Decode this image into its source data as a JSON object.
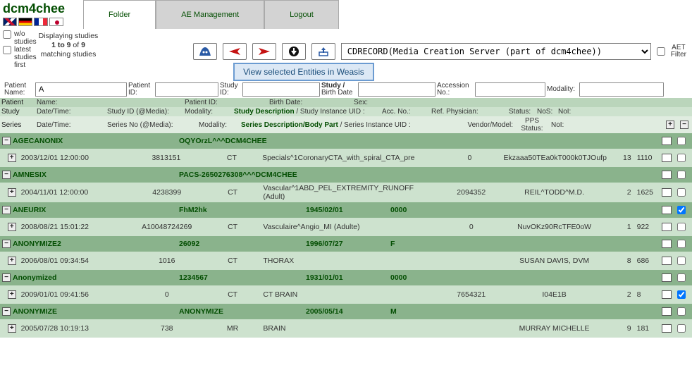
{
  "app": {
    "title": "dcm4chee"
  },
  "tabs": {
    "folder": "Folder",
    "ae": "AE Management",
    "logout": "Logout"
  },
  "filters": {
    "wo_studies": "w/o studies",
    "latest_first": "latest studies first",
    "displaying_prefix": "Displaying studies ",
    "displaying_range": "1 to 9",
    "displaying_of": " of ",
    "displaying_total": "9",
    "displaying_suffix": " matching studies"
  },
  "toolbar": {
    "weasis_label": "View selected Entities in Weasis",
    "dest_value": "CDRECORD(Media Creation Server (part of dcm4chee))",
    "aet_label1": "AET",
    "aet_label2": "Filter"
  },
  "search": {
    "patient_name_lbl1": "Patient",
    "patient_name_lbl2": "Name:",
    "patient_name_val": "A",
    "patient_id_lbl1": "Patient",
    "patient_id_lbl2": "ID:",
    "study_id_lbl1": "Study",
    "study_id_lbl2": "ID:",
    "study_bd_lbl1": "Study /",
    "study_bd_lbl2": "Birth Date",
    "acc_lbl1": "Accession",
    "acc_lbl2": "No.:",
    "modality_lbl": "Modality:"
  },
  "headers": {
    "patient": {
      "section": "Patient",
      "name": "Name:",
      "pid": "Patient ID:",
      "bd": "Birth Date:",
      "sex": "Sex:"
    },
    "study": {
      "section": "Study",
      "dt": "Date/Time:",
      "sid": "Study ID (@Media):",
      "mod": "Modality:",
      "desc1": "Study Description",
      "desc2": " / Study Instance UID :",
      "acc": "Acc. No.:",
      "phy": "Ref. Physician:",
      "stat": "Status:",
      "nos": "NoS:",
      "noi": "NoI:"
    },
    "series": {
      "section": "Series",
      "dt": "Date/Time:",
      "sno": "Series No (@Media):",
      "mod": "Modality:",
      "desc1": "Series Description/Body Part",
      "desc2": " / Series Instance UID :",
      "vm": "Vendor/Model:",
      "pps1": "PPS",
      "pps2": "Status:",
      "noi": "NoI:"
    }
  },
  "patients": [
    {
      "name": "AGECANONIX",
      "pid": "OQYOrzL^^^DCM4CHEE",
      "bd": "",
      "sex": "",
      "checked": false,
      "studies": [
        {
          "dt": "2003/12/01 12:00:00",
          "sid": "3813151",
          "mod": "CT",
          "desc": "Specials^1CoronaryCTA_with_spiral_CTA_pre",
          "acc": "0",
          "phy": "Ekzaaa50TEa0kT000k0TJOufp",
          "nos": "13",
          "noi": "1110",
          "checked": false
        }
      ]
    },
    {
      "name": "AMNESIX",
      "pid": "PACS-2650276308^^^DCM4CHEE",
      "bd": "",
      "sex": "",
      "checked": false,
      "studies": [
        {
          "dt": "2004/11/01 12:00:00",
          "sid": "4238399",
          "mod": "CT",
          "desc": "Vascular^1ABD_PEL_EXTREMITY_RUNOFF (Adult)",
          "acc": "2094352",
          "phy": "REIL^TODD^M.D.",
          "nos": "2",
          "noi": "1625",
          "checked": false
        }
      ]
    },
    {
      "name": "ANEURIX",
      "pid": "FhM2hk",
      "bd": "1945/02/01",
      "sex": "0000",
      "checked": true,
      "studies": [
        {
          "dt": "2008/08/21 15:01:22",
          "sid": "A10048724269",
          "mod": "CT",
          "desc": "Vasculaire^Angio_MI (Adulte)",
          "acc": "0",
          "phy": "NuvOKz90RcTFE0oW",
          "nos": "1",
          "noi": "922",
          "checked": false
        }
      ]
    },
    {
      "name": "ANONYMIZE2",
      "pid": "26092",
      "bd": "1996/07/27",
      "sex": "F",
      "checked": false,
      "studies": [
        {
          "dt": "2006/08/01 09:34:54",
          "sid": "1016",
          "mod": "CT",
          "desc": "THORAX",
          "acc": "",
          "phy": "SUSAN DAVIS, DVM",
          "nos": "8",
          "noi": "686",
          "checked": false
        }
      ]
    },
    {
      "name": "Anonymized",
      "pid": "1234567",
      "bd": "1931/01/01",
      "sex": "0000",
      "checked": false,
      "studies": [
        {
          "dt": "2009/01/01 09:41:56",
          "sid": "0",
          "mod": "CT",
          "desc": "CT BRAIN",
          "acc": "7654321",
          "phy": "I04E1B",
          "nos": "2",
          "noi": "8",
          "checked": true
        }
      ]
    },
    {
      "name": "ANONYMIZE",
      "pid": "ANONYMIZE",
      "bd": "2005/05/14",
      "sex": "M",
      "checked": false,
      "studies": [
        {
          "dt": "2005/07/28 10:19:13",
          "sid": "738",
          "mod": "MR",
          "desc": "BRAIN",
          "acc": "",
          "phy": "MURRAY MICHELLE",
          "nos": "9",
          "noi": "181",
          "checked": false
        }
      ]
    }
  ],
  "colors": {
    "patient_row": "#8ab38c",
    "study_row": "#cde2ce",
    "accent": "#034e02"
  }
}
